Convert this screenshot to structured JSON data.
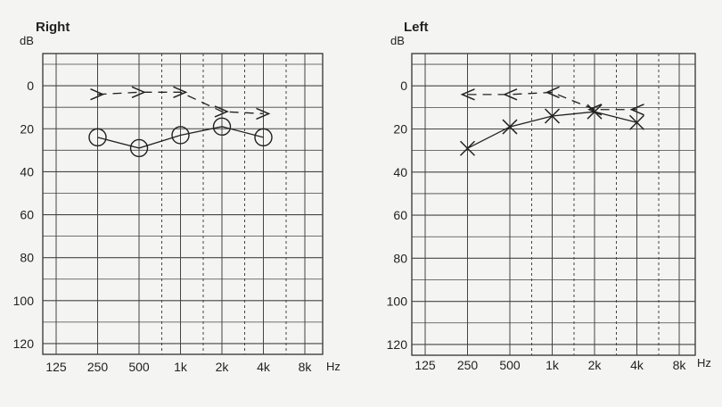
{
  "chart_data": [
    {
      "type": "scatter",
      "title": "Right",
      "ylabel": "dB",
      "xlabel": "Hz",
      "y_direction": "down",
      "ylim": [
        -15,
        125
      ],
      "x_ticks": [
        "125",
        "250",
        "500",
        "1k",
        "2k",
        "4k",
        "8k"
      ],
      "y_ticks": [
        "0",
        "20",
        "40",
        "60",
        "80",
        "100",
        "120"
      ],
      "grid": true,
      "series": [
        {
          "marker": "circle",
          "line": "solid",
          "x": [
            "250",
            "500",
            "1k",
            "2k",
            "4k"
          ],
          "values": [
            24,
            29,
            23,
            19,
            24
          ]
        },
        {
          "marker": "arrow-right",
          "line": "dashed",
          "x": [
            "250",
            "500",
            "1k",
            "2k",
            "4k"
          ],
          "values": [
            4,
            3,
            3,
            12,
            13
          ]
        }
      ]
    },
    {
      "type": "scatter",
      "title": "Left",
      "ylabel": "dB",
      "xlabel": "Hz",
      "y_direction": "down",
      "ylim": [
        -15,
        125
      ],
      "x_ticks": [
        "125",
        "250",
        "500",
        "1k",
        "2k",
        "4k",
        "8k"
      ],
      "y_ticks": [
        "0",
        "20",
        "40",
        "60",
        "80",
        "100",
        "120"
      ],
      "grid": true,
      "series": [
        {
          "marker": "cross",
          "line": "solid",
          "x": [
            "250",
            "500",
            "1k",
            "2k",
            "4k"
          ],
          "values": [
            29,
            19,
            14,
            12,
            17
          ]
        },
        {
          "marker": "arrow-left",
          "line": "dashed",
          "x": [
            "250",
            "500",
            "1k",
            "2k",
            "4k"
          ],
          "values": [
            4,
            4,
            3,
            11,
            11
          ]
        }
      ]
    }
  ]
}
